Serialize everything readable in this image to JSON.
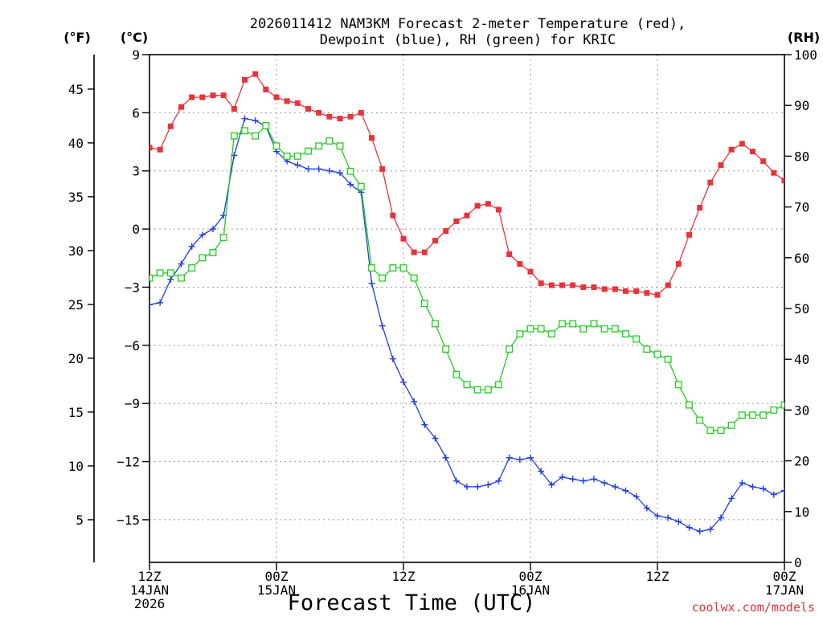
{
  "chart_data": {
    "type": "line",
    "title": {
      "line1": "2026011412 NAM3KM Forecast 2-meter Temperature (red),",
      "line2": "Dewpoint (blue), RH (green) for KRIC"
    },
    "xlabel": "Forecast Time (UTC)",
    "credit": "coolwx.com/models",
    "units": {
      "fahrenheit": "(°F)",
      "celsius": "(°C)",
      "rh": "(RH)"
    },
    "x_unit": "forecast hour",
    "xlim": [
      0,
      60
    ],
    "x_ticks": [
      {
        "x": 0,
        "lines": [
          "12Z",
          "14JAN",
          "2026"
        ]
      },
      {
        "x": 12,
        "lines": [
          "00Z",
          "15JAN"
        ]
      },
      {
        "x": 24,
        "lines": [
          "12Z"
        ]
      },
      {
        "x": 36,
        "lines": [
          "00Z",
          "16JAN"
        ]
      },
      {
        "x": 48,
        "lines": [
          "12Z"
        ]
      },
      {
        "x": 60,
        "lines": [
          "00Z",
          "17JAN"
        ]
      }
    ],
    "ylim_c": [
      -17.2,
      9
    ],
    "yticks_c": [
      9,
      6,
      3,
      0,
      -3,
      -6,
      -9,
      -12,
      -15
    ],
    "yticks_c_labels": [
      "9",
      "6",
      "3",
      "0",
      "−3",
      "−6",
      "−9",
      "−12",
      "−15"
    ],
    "yticks_f": [
      45,
      40,
      35,
      30,
      25,
      20,
      15,
      10,
      5
    ],
    "yticks_f_labels": [
      "45",
      "40",
      "35",
      "30",
      "25",
      "20",
      "15",
      "10",
      "5"
    ],
    "ylim_rh": [
      0,
      100
    ],
    "yticks_rh": [
      100,
      90,
      80,
      70,
      60,
      50,
      40,
      30,
      20,
      10,
      0
    ],
    "yticks_rh_labels": [
      "100",
      "90",
      "80",
      "70",
      "60",
      "50",
      "40",
      "30",
      "20",
      "10",
      "0"
    ],
    "grid": true,
    "series": [
      {
        "name": "Temperature",
        "unit": "°C",
        "axis": "celsius",
        "color": "#e8333a",
        "marker": "filled-square",
        "x": [
          0,
          1,
          2,
          3,
          4,
          5,
          6,
          7,
          8,
          9,
          10,
          11,
          12,
          13,
          14,
          15,
          16,
          17,
          18,
          19,
          20,
          21,
          22,
          23,
          24,
          25,
          26,
          27,
          28,
          29,
          30,
          31,
          32,
          33,
          34,
          35,
          36,
          37,
          38,
          39,
          40,
          41,
          42,
          43,
          44,
          45,
          46,
          47,
          48,
          49,
          50,
          51,
          52,
          53,
          54,
          55,
          56,
          57,
          58,
          59,
          60
        ],
        "values": [
          4.2,
          4.1,
          5.3,
          6.3,
          6.8,
          6.8,
          6.9,
          6.9,
          6.2,
          7.7,
          8.0,
          7.2,
          6.8,
          6.6,
          6.5,
          6.2,
          6.0,
          5.8,
          5.7,
          5.8,
          6.0,
          4.7,
          3.1,
          0.7,
          -0.5,
          -1.2,
          -1.2,
          -0.6,
          -0.1,
          0.4,
          0.7,
          1.2,
          1.3,
          1.0,
          -1.3,
          -1.8,
          -2.2,
          -2.8,
          -2.9,
          -2.9,
          -2.9,
          -3.0,
          -3.0,
          -3.1,
          -3.1,
          -3.2,
          -3.2,
          -3.3,
          -3.4,
          -2.9,
          -1.8,
          -0.3,
          1.1,
          2.4,
          3.3,
          4.1,
          4.4,
          4.0,
          3.5,
          2.9,
          2.5
        ]
      },
      {
        "name": "Dewpoint",
        "unit": "°C",
        "axis": "celsius",
        "color": "#1f3ee0",
        "marker": "plus",
        "x": [
          0,
          1,
          2,
          3,
          4,
          5,
          6,
          7,
          8,
          9,
          10,
          11,
          12,
          13,
          14,
          15,
          16,
          17,
          18,
          19,
          20,
          21,
          22,
          23,
          24,
          25,
          26,
          27,
          28,
          29,
          30,
          31,
          32,
          33,
          34,
          35,
          36,
          37,
          38,
          39,
          40,
          41,
          42,
          43,
          44,
          45,
          46,
          47,
          48,
          49,
          50,
          51,
          52,
          53,
          54,
          55,
          56,
          57,
          58,
          59,
          60
        ],
        "values": [
          -3.9,
          -3.8,
          -2.6,
          -1.8,
          -0.9,
          -0.3,
          0.0,
          0.7,
          3.8,
          5.7,
          5.6,
          5.3,
          4.0,
          3.5,
          3.3,
          3.1,
          3.1,
          3.0,
          2.9,
          2.3,
          1.9,
          -2.8,
          -5.0,
          -6.7,
          -7.9,
          -8.9,
          -10.1,
          -10.8,
          -11.8,
          -13.0,
          -13.3,
          -13.3,
          -13.2,
          -13.0,
          -11.8,
          -11.9,
          -11.8,
          -12.5,
          -13.2,
          -12.8,
          -12.9,
          -13.0,
          -12.9,
          -13.1,
          -13.3,
          -13.5,
          -13.8,
          -14.4,
          -14.8,
          -14.9,
          -15.1,
          -15.4,
          -15.6,
          -15.5,
          -14.9,
          -13.9,
          -13.1,
          -13.3,
          -13.4,
          -13.7,
          -13.5
        ]
      },
      {
        "name": "RH",
        "unit": "%",
        "axis": "rh",
        "color": "#22cc22",
        "marker": "open-square",
        "x": [
          0,
          1,
          2,
          3,
          4,
          5,
          6,
          7,
          8,
          9,
          10,
          11,
          12,
          13,
          14,
          15,
          16,
          17,
          18,
          19,
          20,
          21,
          22,
          23,
          24,
          25,
          26,
          27,
          28,
          29,
          30,
          31,
          32,
          33,
          34,
          35,
          36,
          37,
          38,
          39,
          40,
          41,
          42,
          43,
          44,
          45,
          46,
          47,
          48,
          49,
          50,
          51,
          52,
          53,
          54,
          55,
          56,
          57,
          58,
          59,
          60
        ],
        "values": [
          56,
          57,
          57,
          56,
          58,
          60,
          61,
          64,
          84,
          85,
          84,
          86,
          82,
          80,
          80,
          81,
          82,
          83,
          82,
          77,
          74,
          58,
          56,
          58,
          58,
          56,
          51,
          47,
          42,
          37,
          35,
          34,
          34,
          35,
          42,
          45,
          46,
          46,
          45,
          47,
          47,
          46,
          47,
          46,
          46,
          45,
          44,
          42,
          41,
          40,
          35,
          31,
          28,
          26,
          26,
          27,
          29,
          29,
          29,
          30,
          31
        ]
      }
    ]
  }
}
